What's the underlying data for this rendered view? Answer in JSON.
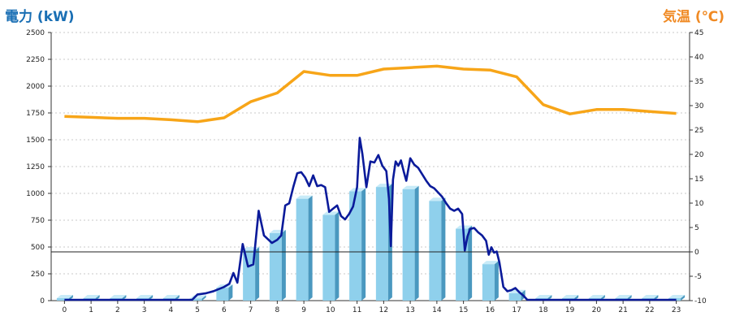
{
  "header": {
    "left_title": "電力 (kW)",
    "right_title": "気温 (℃)"
  },
  "colors": {
    "power_line": "#0a1a9a",
    "temp_line": "#f7a518",
    "bar_front": "#8fd0ec",
    "bar_side": "#4a98bf",
    "bar_top": "#c8ebf8",
    "grid": "#c8c8c8"
  },
  "chart_data": {
    "type": "bar",
    "xlabel": "",
    "ylabel": "電力 (kW)",
    "y2label": "気温 (℃)",
    "ylim": [
      0,
      2500
    ],
    "y2lim": [
      -10,
      45
    ],
    "grid": true,
    "categories": [
      "0",
      "1",
      "2",
      "3",
      "4",
      "5",
      "6",
      "7",
      "8",
      "9",
      "10",
      "11",
      "12",
      "13",
      "14",
      "15",
      "16",
      "17",
      "18",
      "19",
      "20",
      "21",
      "22",
      "23"
    ],
    "yticks": [
      "0",
      "250",
      "500",
      "750",
      "1000",
      "1250",
      "1500",
      "1750",
      "2000",
      "2250",
      "2500"
    ],
    "y2ticks": [
      "-10",
      "-5",
      "0",
      "5",
      "10",
      "15",
      "20",
      "25",
      "30",
      "35",
      "40",
      "45"
    ],
    "series": [
      {
        "kind": "bar",
        "axis": "left",
        "values": [
          0,
          0,
          0,
          0,
          0,
          20,
          120,
          470,
          630,
          950,
          800,
          1020,
          1060,
          1040,
          930,
          670,
          340,
          70,
          0,
          0,
          0,
          0,
          0,
          0
        ]
      },
      {
        "kind": "line",
        "axis": "left",
        "points": [
          [
            0,
            0
          ],
          [
            1,
            0
          ],
          [
            2,
            0
          ],
          [
            3,
            0
          ],
          [
            4,
            0
          ],
          [
            4.8,
            0
          ],
          [
            5,
            50
          ],
          [
            5.3,
            60
          ],
          [
            5.6,
            80
          ],
          [
            6,
            120
          ],
          [
            6.2,
            150
          ],
          [
            6.35,
            250
          ],
          [
            6.5,
            160
          ],
          [
            6.7,
            520
          ],
          [
            6.9,
            310
          ],
          [
            7.1,
            330
          ],
          [
            7.3,
            830
          ],
          [
            7.5,
            600
          ],
          [
            7.8,
            530
          ],
          [
            8.0,
            560
          ],
          [
            8.15,
            600
          ],
          [
            8.3,
            880
          ],
          [
            8.45,
            900
          ],
          [
            8.6,
            1050
          ],
          [
            8.75,
            1180
          ],
          [
            8.9,
            1190
          ],
          [
            9.05,
            1140
          ],
          [
            9.2,
            1060
          ],
          [
            9.35,
            1160
          ],
          [
            9.5,
            1060
          ],
          [
            9.65,
            1070
          ],
          [
            9.8,
            1050
          ],
          [
            9.95,
            820
          ],
          [
            10.1,
            850
          ],
          [
            10.25,
            880
          ],
          [
            10.4,
            780
          ],
          [
            10.55,
            750
          ],
          [
            10.7,
            800
          ],
          [
            10.85,
            870
          ],
          [
            11.0,
            1050
          ],
          [
            11.1,
            1510
          ],
          [
            11.2,
            1360
          ],
          [
            11.35,
            1050
          ],
          [
            11.5,
            1290
          ],
          [
            11.65,
            1280
          ],
          [
            11.8,
            1350
          ],
          [
            11.95,
            1250
          ],
          [
            12.1,
            1200
          ],
          [
            12.2,
            940
          ],
          [
            12.27,
            500
          ],
          [
            12.35,
            1120
          ],
          [
            12.45,
            1290
          ],
          [
            12.55,
            1250
          ],
          [
            12.65,
            1300
          ],
          [
            12.75,
            1200
          ],
          [
            12.85,
            1110
          ],
          [
            13.0,
            1320
          ],
          [
            13.15,
            1260
          ],
          [
            13.3,
            1230
          ],
          [
            13.45,
            1170
          ],
          [
            13.6,
            1110
          ],
          [
            13.75,
            1060
          ],
          [
            13.9,
            1040
          ],
          [
            14.05,
            1000
          ],
          [
            14.2,
            960
          ],
          [
            14.35,
            900
          ],
          [
            14.5,
            850
          ],
          [
            14.65,
            830
          ],
          [
            14.8,
            850
          ],
          [
            14.95,
            800
          ],
          [
            15.05,
            460
          ],
          [
            15.15,
            590
          ],
          [
            15.25,
            660
          ],
          [
            15.4,
            670
          ],
          [
            15.55,
            630
          ],
          [
            15.7,
            600
          ],
          [
            15.85,
            550
          ],
          [
            15.95,
            420
          ],
          [
            16.05,
            490
          ],
          [
            16.15,
            440
          ],
          [
            16.25,
            450
          ],
          [
            16.35,
            350
          ],
          [
            16.5,
            120
          ],
          [
            16.65,
            80
          ],
          [
            16.8,
            90
          ],
          [
            16.95,
            110
          ],
          [
            17.1,
            70
          ],
          [
            17.25,
            40
          ],
          [
            17.4,
            0
          ],
          [
            18,
            0
          ],
          [
            19,
            0
          ],
          [
            20,
            0
          ],
          [
            21,
            0
          ],
          [
            22,
            0
          ],
          [
            23,
            0
          ]
        ]
      },
      {
        "kind": "line",
        "axis": "right",
        "points": [
          [
            0,
            27.8
          ],
          [
            1,
            27.6
          ],
          [
            2,
            27.4
          ],
          [
            3,
            27.4
          ],
          [
            4,
            27.1
          ],
          [
            5,
            26.7
          ],
          [
            6,
            27.5
          ],
          [
            7,
            30.8
          ],
          [
            8,
            32.6
          ],
          [
            9,
            37.0
          ],
          [
            10,
            36.2
          ],
          [
            11,
            36.2
          ],
          [
            12,
            37.5
          ],
          [
            13,
            37.8
          ],
          [
            14,
            38.1
          ],
          [
            15,
            37.5
          ],
          [
            16,
            37.3
          ],
          [
            17,
            35.9
          ],
          [
            18,
            30.2
          ],
          [
            19,
            28.3
          ],
          [
            20,
            29.2
          ],
          [
            21,
            29.2
          ],
          [
            22,
            28.8
          ],
          [
            23,
            28.4
          ]
        ]
      }
    ]
  }
}
